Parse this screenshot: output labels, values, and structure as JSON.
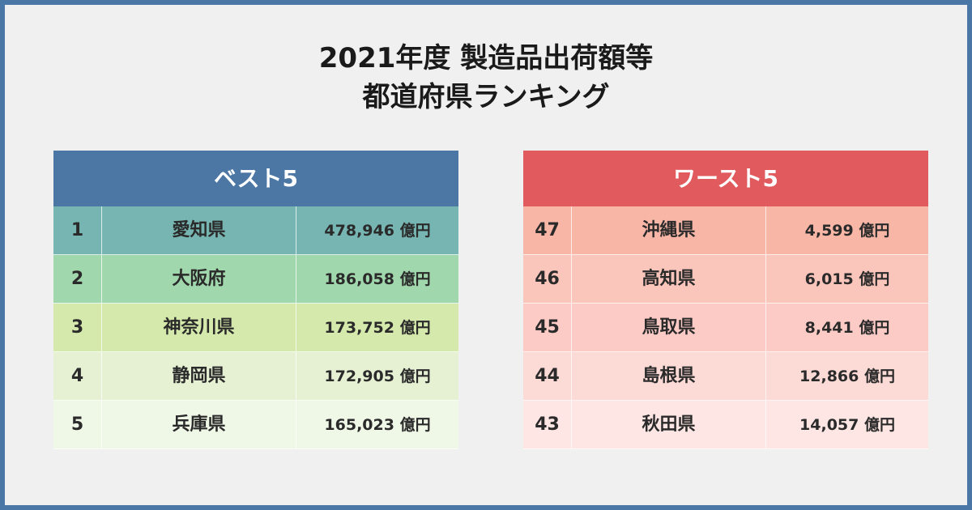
{
  "title": {
    "line1": "2021年度 製造品出荷額等",
    "line2": "都道府県ランキング"
  },
  "best": {
    "header": "ベスト5",
    "rows": [
      {
        "rank": "1",
        "prefecture": "愛知県",
        "value": "478,946 億円"
      },
      {
        "rank": "2",
        "prefecture": "大阪府",
        "value": "186,058 億円"
      },
      {
        "rank": "3",
        "prefecture": "神奈川県",
        "value": "173,752 億円"
      },
      {
        "rank": "4",
        "prefecture": "静岡県",
        "value": "172,905 億円"
      },
      {
        "rank": "5",
        "prefecture": "兵庫県",
        "value": "165,023 億円"
      }
    ]
  },
  "worst": {
    "header": "ワースト5",
    "rows": [
      {
        "rank": "47",
        "prefecture": "沖縄県",
        "value": "4,599 億円"
      },
      {
        "rank": "46",
        "prefecture": "高知県",
        "value": "6,015 億円"
      },
      {
        "rank": "45",
        "prefecture": "鳥取県",
        "value": "8,441 億円"
      },
      {
        "rank": "44",
        "prefecture": "島根県",
        "value": "12,866 億円"
      },
      {
        "rank": "43",
        "prefecture": "秋田県",
        "value": "14,057 億円"
      }
    ]
  },
  "colors": {
    "border": "#4a77a6",
    "background": "#f0f0f0",
    "best_header": "#4c77a5",
    "worst_header": "#e05a5e"
  }
}
